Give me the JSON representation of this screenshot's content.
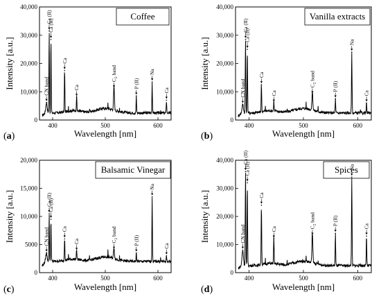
{
  "chart_data": [
    {
      "type": "line",
      "panel": "(a)",
      "panel_letter": "a",
      "title": "Coffee",
      "xlabel": "Wavelength [nm]",
      "ylabel": "Intensity [a.u.]",
      "xlim": [
        375,
        625
      ],
      "ylim": [
        0,
        40000
      ],
      "xticks": [
        400,
        500,
        600
      ],
      "yticks": [
        0,
        10000,
        20000,
        30000,
        40000
      ],
      "ytick_labels": [
        "0",
        "10,000",
        "20,000",
        "30,000",
        "40,000"
      ],
      "baseline": 2500,
      "peaks": [
        {
          "x": 388.3,
          "y": 6200,
          "label": "CN band"
        },
        {
          "x": 393.4,
          "y": 31500,
          "label": "Ca (II)"
        },
        {
          "x": 396.8,
          "y": 28500,
          "label": "Ca (II)"
        },
        {
          "x": 422.7,
          "y": 17500,
          "label": "Ca"
        },
        {
          "x": 445.5,
          "y": 8000,
          "label": "Ca"
        },
        {
          "x": 516.5,
          "y": 11000,
          "label": "C2 band"
        },
        {
          "x": 558.9,
          "y": 8500,
          "label": "P (II)"
        },
        {
          "x": 589.0,
          "y": 13500,
          "label": "Na"
        },
        {
          "x": 616.2,
          "y": 7000,
          "label": "Ca"
        }
      ]
    },
    {
      "type": "line",
      "panel": "(b)",
      "panel_letter": "b",
      "title": "Vanilla extracts",
      "xlabel": "Wavelength [nm]",
      "ylabel": "Intensity [a.u.]",
      "xlim": [
        375,
        625
      ],
      "ylim": [
        0,
        40000
      ],
      "xticks": [
        400,
        500,
        600
      ],
      "yticks": [
        0,
        10000,
        20000,
        30000,
        40000
      ],
      "ytick_labels": [
        "0",
        "10,000",
        "20,000",
        "30,000",
        "40,000"
      ],
      "baseline": 2500,
      "peaks": [
        {
          "x": 388.3,
          "y": 5500,
          "label": "CN band"
        },
        {
          "x": 393.4,
          "y": 28500,
          "label": "Ca (II)"
        },
        {
          "x": 396.8,
          "y": 25000,
          "label": "Ca (II)"
        },
        {
          "x": 422.7,
          "y": 12500,
          "label": "Ca"
        },
        {
          "x": 445.5,
          "y": 6000,
          "label": "Ca"
        },
        {
          "x": 516.5,
          "y": 9000,
          "label": "C2 band"
        },
        {
          "x": 558.9,
          "y": 7500,
          "label": "P (II)"
        },
        {
          "x": 589.0,
          "y": 24000,
          "label": "Na"
        },
        {
          "x": 616.2,
          "y": 6000,
          "label": "Ca"
        }
      ]
    },
    {
      "type": "line",
      "panel": "(c)",
      "panel_letter": "c",
      "title": "Balsamic Vinegar",
      "xlabel": "Wavelength [nm]",
      "ylabel": "Intensity [a.u.]",
      "xlim": [
        375,
        625
      ],
      "ylim": [
        0,
        20000
      ],
      "xticks": [
        400,
        500,
        600
      ],
      "yticks": [
        0,
        5000,
        10000,
        15000,
        20000
      ],
      "ytick_labels": [
        "0",
        "5000",
        "10,000",
        "15,000",
        "20,000"
      ],
      "baseline": 2000,
      "peaks": [
        {
          "x": 388.3,
          "y": 3500,
          "label": "CN band"
        },
        {
          "x": 393.4,
          "y": 10500,
          "label": "Ca (II)"
        },
        {
          "x": 396.8,
          "y": 9500,
          "label": "Ca (II)"
        },
        {
          "x": 422.7,
          "y": 6000,
          "label": "Ca"
        },
        {
          "x": 445.5,
          "y": 3800,
          "label": "Ca"
        },
        {
          "x": 516.5,
          "y": 4000,
          "label": "C2 band"
        },
        {
          "x": 558.9,
          "y": 3500,
          "label": "P (II)"
        },
        {
          "x": 589.0,
          "y": 13500,
          "label": "Na"
        },
        {
          "x": 616.2,
          "y": 3000,
          "label": "Ca"
        }
      ]
    },
    {
      "type": "line",
      "panel": "(d)",
      "panel_letter": "d",
      "title": "Spices",
      "xlabel": "Wavelength [nm]",
      "ylabel": "Intensity [a.u.]",
      "xlim": [
        375,
        625
      ],
      "ylim": [
        0,
        40000
      ],
      "xticks": [
        400,
        500,
        600
      ],
      "yticks": [
        0,
        10000,
        20000,
        30000,
        40000
      ],
      "ytick_labels": [
        "0",
        "10,000",
        "20,000",
        "30,000",
        "40,000"
      ],
      "baseline": 2500,
      "peaks": [
        {
          "x": 388.3,
          "y": 8000,
          "label": "CN band"
        },
        {
          "x": 393.4,
          "y": 36000,
          "label": "Ca (II)"
        },
        {
          "x": 396.8,
          "y": 32000,
          "label": "Ca (II)"
        },
        {
          "x": 422.7,
          "y": 24000,
          "label": "Ca"
        },
        {
          "x": 445.5,
          "y": 12000,
          "label": "Ca"
        },
        {
          "x": 516.5,
          "y": 13000,
          "label": "C2 band"
        },
        {
          "x": 558.9,
          "y": 14000,
          "label": "P (II)"
        },
        {
          "x": 589.0,
          "y": 34000,
          "label": "Na"
        },
        {
          "x": 616.2,
          "y": 13000,
          "label": "Ca"
        }
      ]
    }
  ]
}
